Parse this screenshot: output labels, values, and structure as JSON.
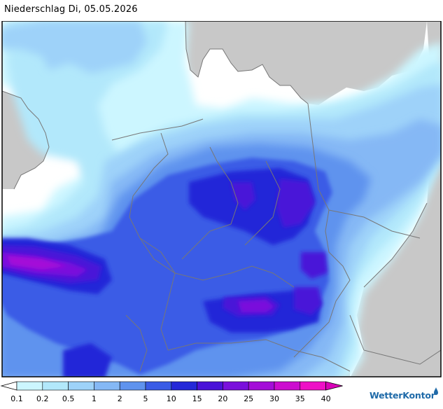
{
  "header": {
    "title": "Niederschlag Di, 05.05.2026"
  },
  "legend": {
    "labels": [
      "0.1",
      "0.2",
      "0.5",
      "1",
      "2",
      "5",
      "10",
      "15",
      "20",
      "25",
      "30",
      "35",
      "40"
    ],
    "colors": [
      "#ffffff",
      "#ccf6ff",
      "#b2e8fb",
      "#9ed2f9",
      "#85b8f5",
      "#5f93ee",
      "#3a5ce6",
      "#2428d8",
      "#4a12d8",
      "#7a10dc",
      "#a40ed8",
      "#cc0ccf",
      "#ee10c6",
      "#d800b8"
    ]
  },
  "brand": {
    "name": "WetterKontor",
    "logo": "wetterkontor-logo"
  },
  "map": {
    "colors": {
      "land": "#c8c8c8",
      "sea": "#ffffff",
      "border": "#777777"
    }
  }
}
